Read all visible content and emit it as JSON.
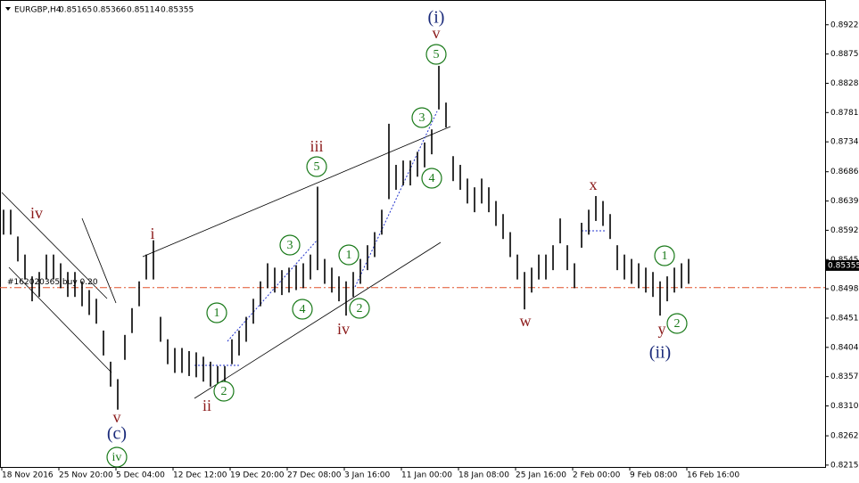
{
  "chart_data": {
    "type": "ohlc",
    "header": {
      "symbol": "EURGBP,H4",
      "open": 0.85165,
      "high": 0.85366,
      "low": 0.85114,
      "close": 0.85355
    },
    "high": [
      0.8625,
      0.8625,
      0.8582,
      0.8553,
      0.8518,
      0.8525,
      0.8553,
      0.8553,
      0.8539,
      0.8525,
      0.8525,
      0.851,
      0.8496,
      0.8482,
      0.8431,
      0.8381,
      0.8353,
      0.8424,
      0.8467,
      0.851,
      0.8553,
      0.8576,
      0.8453,
      0.8417,
      0.8403,
      0.8403,
      0.8398,
      0.8396,
      0.8389,
      0.8381,
      0.8374,
      0.8374,
      0.8417,
      0.8431,
      0.8453,
      0.8482,
      0.851,
      0.8539,
      0.8532,
      0.8528,
      0.8532,
      0.8536,
      0.8539,
      0.8553,
      0.8662,
      0.8546,
      0.8532,
      0.8518,
      0.851,
      0.8525,
      0.8546,
      0.8568,
      0.8589,
      0.8625,
      0.8763,
      0.8697,
      0.8704,
      0.8704,
      0.8718,
      0.8733,
      0.8754,
      0.8856,
      0.8797,
      0.8711,
      0.8697,
      0.8675,
      0.8661,
      0.8675,
      0.8661,
      0.8639,
      0.8618,
      0.8589,
      0.8553,
      0.8525,
      0.8532,
      0.8553,
      0.8553,
      0.8568,
      0.8611,
      0.8568,
      0.8539,
      0.8604,
      0.8625,
      0.8647,
      0.8639,
      0.8618,
      0.8568,
      0.8553,
      0.8546,
      0.8539,
      0.8532,
      0.8525,
      0.851,
      0.8518,
      0.8532,
      0.8539,
      0.8546
    ],
    "low": [
      0.8585,
      0.8585,
      0.8542,
      0.8513,
      0.8478,
      0.8485,
      0.8513,
      0.8513,
      0.8499,
      0.8485,
      0.8485,
      0.847,
      0.8456,
      0.8442,
      0.8391,
      0.8341,
      0.8304,
      0.8384,
      0.8427,
      0.847,
      0.8513,
      0.8513,
      0.8413,
      0.8377,
      0.8363,
      0.8363,
      0.8358,
      0.8356,
      0.8349,
      0.8341,
      0.8334,
      0.8334,
      0.8377,
      0.8391,
      0.8413,
      0.8442,
      0.847,
      0.8499,
      0.8492,
      0.8488,
      0.8492,
      0.8496,
      0.8499,
      0.8513,
      0.8528,
      0.8506,
      0.8492,
      0.8478,
      0.8455,
      0.8485,
      0.8506,
      0.8528,
      0.8549,
      0.8585,
      0.8642,
      0.8657,
      0.8664,
      0.8664,
      0.8678,
      0.8693,
      0.8714,
      0.8786,
      0.8757,
      0.8671,
      0.8657,
      0.8635,
      0.8621,
      0.8635,
      0.8621,
      0.8599,
      0.8578,
      0.8549,
      0.8513,
      0.8465,
      0.8492,
      0.8513,
      0.8513,
      0.8528,
      0.8571,
      0.8528,
      0.8499,
      0.8564,
      0.8585,
      0.8607,
      0.8599,
      0.8578,
      0.8528,
      0.8513,
      0.8506,
      0.8499,
      0.8492,
      0.8485,
      0.8455,
      0.8478,
      0.8492,
      0.8499,
      0.8506
    ],
    "ylim": [
      0.8212,
      0.8956
    ],
    "yticks": [
      {
        "value": 0.8922,
        "label": "0.89220"
      },
      {
        "value": 0.8875,
        "label": "0.88750"
      },
      {
        "value": 0.8828,
        "label": "0.88280"
      },
      {
        "value": 0.8781,
        "label": "0.87810"
      },
      {
        "value": 0.8734,
        "label": "0.87340"
      },
      {
        "value": 0.8686,
        "label": "0.86860"
      },
      {
        "value": 0.8639,
        "label": "0.86390"
      },
      {
        "value": 0.8592,
        "label": "0.85920"
      },
      {
        "value": 0.8545,
        "label": "0.85450"
      },
      {
        "value": 0.8498,
        "label": "0.84980"
      },
      {
        "value": 0.8451,
        "label": "0.84510"
      },
      {
        "value": 0.8404,
        "label": "0.84040"
      },
      {
        "value": 0.8357,
        "label": "0.83570"
      },
      {
        "value": 0.831,
        "label": "0.83100"
      },
      {
        "value": 0.8262,
        "label": "0.82620"
      },
      {
        "value": 0.8215,
        "label": "0.82150"
      }
    ],
    "xticks": [
      {
        "value": 0,
        "label": "18 Nov 2016"
      },
      {
        "value": 8,
        "label": "25 Nov 20:00"
      },
      {
        "value": 16,
        "label": "5 Dec 04:00"
      },
      {
        "value": 24,
        "label": "12 Dec 12:00"
      },
      {
        "value": 32,
        "label": "19 Dec 20:00"
      },
      {
        "value": 40,
        "label": "27 Dec 08:00"
      },
      {
        "value": 48,
        "label": "3 Jan 16:00"
      },
      {
        "value": 56,
        "label": "11 Jan 00:00"
      },
      {
        "value": 64,
        "label": "18 Jan 08:00"
      },
      {
        "value": 72,
        "label": "25 Jan 16:00"
      },
      {
        "value": 80,
        "label": "2 Feb 00:00"
      },
      {
        "value": 88,
        "label": "9 Feb 08:00"
      },
      {
        "value": 96,
        "label": "16 Feb 16:00"
      }
    ],
    "order": {
      "label": "#162020365 buy 0.20",
      "price": 0.85
    },
    "annotations": [
      {
        "text": "(i)",
        "style": "degree"
      },
      {
        "text": "v",
        "style": "wave"
      },
      {
        "text": "5",
        "style": "circle"
      },
      {
        "text": "3",
        "style": "circle"
      },
      {
        "text": "4",
        "style": "circle"
      },
      {
        "text": "iii",
        "style": "wave"
      },
      {
        "text": "5",
        "style": "circle"
      },
      {
        "text": "3",
        "style": "circle"
      },
      {
        "text": "4",
        "style": "circle"
      },
      {
        "text": "1",
        "style": "circle"
      },
      {
        "text": "2",
        "style": "circle"
      },
      {
        "text": "iv",
        "style": "wave"
      },
      {
        "text": "i",
        "style": "wave"
      },
      {
        "text": "1",
        "style": "circle"
      },
      {
        "text": "2",
        "style": "circle"
      },
      {
        "text": "ii",
        "style": "wave"
      },
      {
        "text": "iv",
        "style": "wave"
      },
      {
        "text": "v",
        "style": "wave"
      },
      {
        "text": "(c)",
        "style": "degree"
      },
      {
        "text": "iv",
        "style": "circle"
      },
      {
        "text": "x",
        "style": "wave"
      },
      {
        "text": "w",
        "style": "wave"
      },
      {
        "text": "1",
        "style": "circle"
      },
      {
        "text": "2",
        "style": "circle"
      },
      {
        "text": "y",
        "style": "wave"
      },
      {
        "text": "(ii)",
        "style": "degree"
      }
    ]
  }
}
